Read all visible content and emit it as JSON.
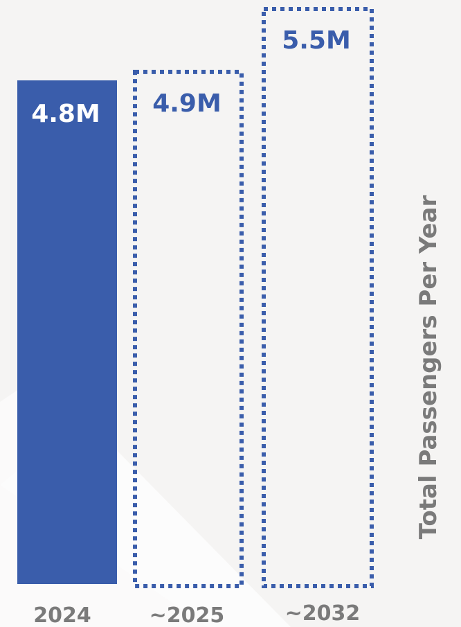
{
  "chart_data": {
    "type": "bar",
    "categories": [
      "2024",
      "~2025",
      "~2032"
    ],
    "values": [
      4.8,
      4.9,
      5.5
    ],
    "value_labels": [
      "4.8M",
      "4.9M",
      "5.5M"
    ],
    "bar_styles": [
      "solid",
      "dashed",
      "dashed"
    ],
    "ylabel": "Total Passengers Per Year",
    "ylim": [
      0,
      5.5
    ],
    "grid": false,
    "legend": "none",
    "colors": {
      "bar": "#3a5dab",
      "solid_label": "#ffffff",
      "dashed_label": "#3a5dab",
      "axis_text": "#7a7a7a",
      "background": "#f5f4f3",
      "stripe": "#ffffff"
    }
  }
}
